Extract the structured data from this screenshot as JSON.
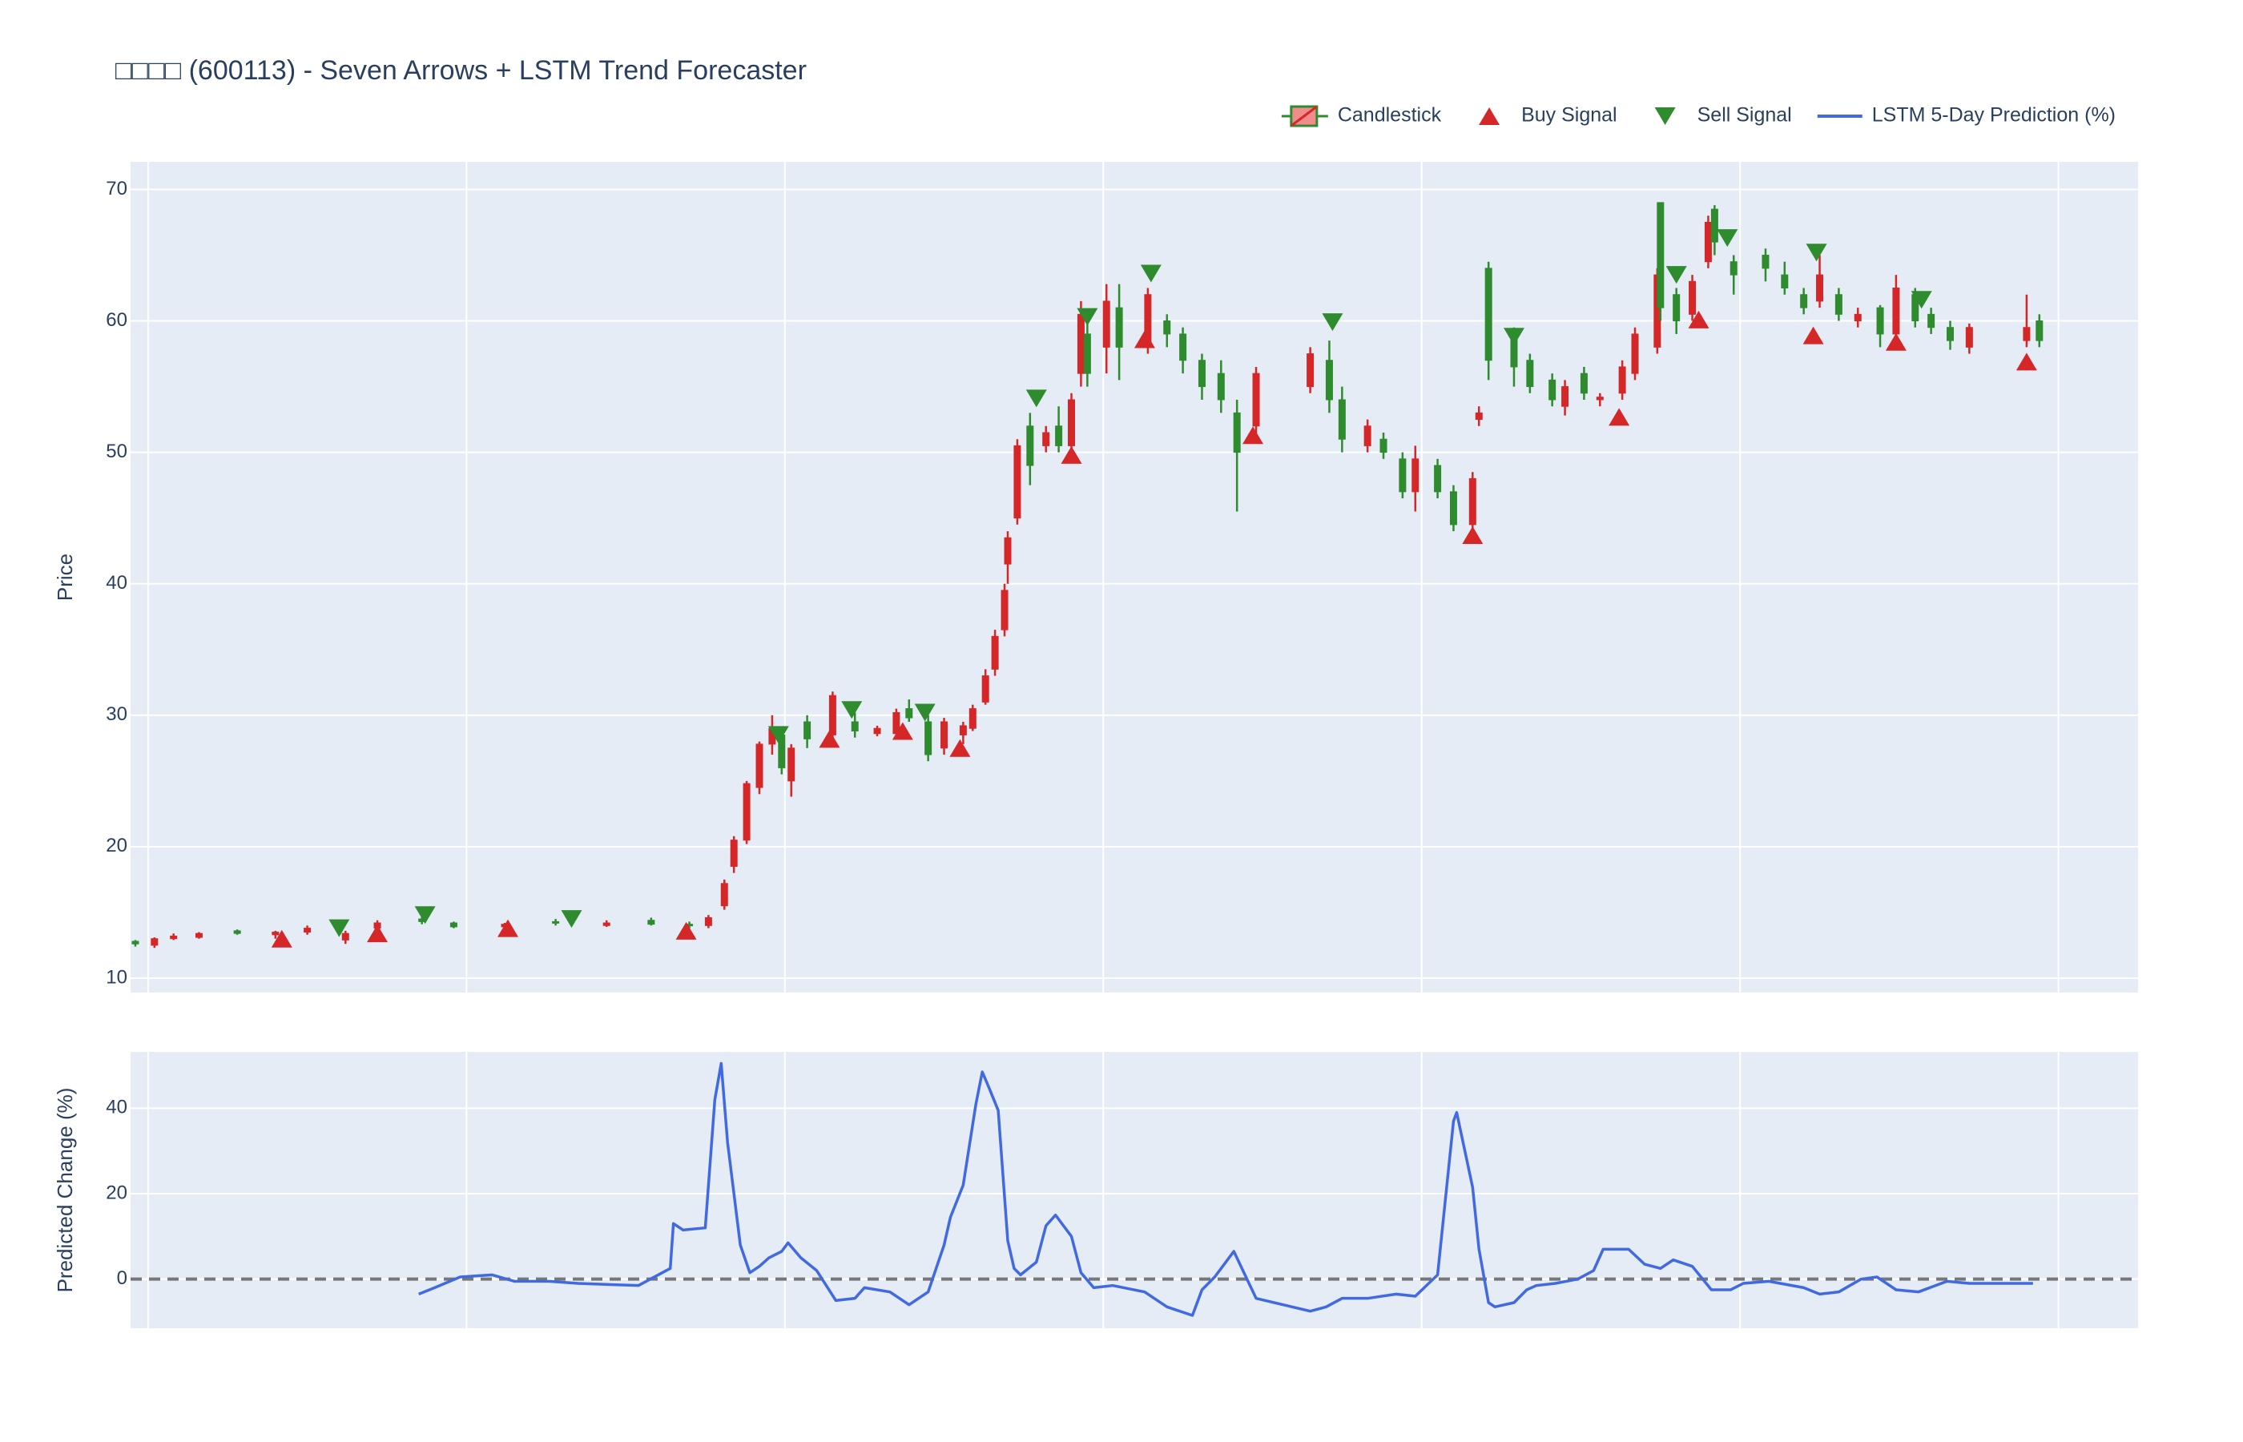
{
  "chart_data": [
    {
      "type": "candlestick",
      "title": "□□□□ (600113) - Seven Arrows + LSTM Trend Forecaster",
      "ylabel": "Price",
      "name": "Candlestick",
      "increasing_color": "#d62728",
      "decreasing_color": "#2e8b2e",
      "x": [
        -4,
        2,
        8,
        16,
        28,
        40,
        50,
        62,
        72,
        86,
        96,
        112,
        128,
        144,
        158,
        170,
        176,
        181,
        184,
        188,
        192,
        196,
        199,
        202,
        207,
        215,
        222,
        229,
        235,
        239,
        245,
        250,
        256,
        259,
        263,
        266,
        269,
        270,
        273,
        277,
        282,
        286,
        290,
        293,
        295,
        301,
        305,
        314,
        320,
        325,
        331,
        337,
        342,
        348,
        365,
        371,
        375,
        383,
        388,
        394,
        398,
        405,
        410,
        416,
        418,
        421,
        429,
        434,
        441,
        445,
        451,
        456,
        463,
        467,
        474,
        475,
        480,
        485,
        490,
        492,
        498,
        508,
        514,
        520,
        525,
        531,
        537,
        544,
        549,
        555,
        560,
        566,
        572,
        590,
        594
      ],
      "open": [
        12.8,
        12.5,
        13.0,
        13.1,
        13.6,
        13.3,
        13.5,
        12.9,
        13.8,
        14.5,
        14.2,
        13.9,
        14.3,
        14.0,
        14.4,
        14.1,
        14.0,
        15.5,
        18.5,
        20.5,
        24.5,
        27.8,
        28.5,
        25.0,
        29.5,
        28.5,
        29.5,
        28.6,
        28.6,
        30.5,
        29.5,
        27.5,
        28.5,
        29.0,
        31.0,
        33.5,
        36.5,
        41.5,
        45.0,
        52.0,
        50.5,
        52.0,
        50.5,
        56.0,
        59.0,
        58.0,
        61.0,
        58.0,
        60.0,
        59.0,
        57.0,
        56.0,
        53.0,
        52.0,
        55.0,
        57.0,
        54.0,
        50.5,
        51.0,
        49.5,
        47.0,
        49.0,
        47.0,
        44.5,
        52.5,
        64.0,
        59.0,
        57.0,
        55.5,
        53.5,
        56.0,
        54.0,
        54.5,
        56.0,
        58.0,
        69.0,
        62.0,
        60.5,
        64.5,
        68.5,
        64.5,
        65.0,
        63.5,
        62.0,
        61.5,
        62.0,
        60.0,
        61.0,
        59.0,
        62.0,
        60.5,
        59.5,
        58.0,
        58.5,
        60.0
      ],
      "high": [
        12.9,
        13.1,
        13.4,
        13.5,
        13.7,
        13.6,
        14.0,
        13.6,
        14.4,
        14.9,
        14.3,
        14.2,
        14.5,
        14.4,
        14.6,
        14.3,
        14.8,
        17.5,
        20.8,
        25.0,
        28.0,
        30.0,
        29.0,
        27.8,
        30.0,
        31.8,
        30.2,
        29.2,
        30.5,
        31.2,
        30.0,
        29.8,
        29.5,
        30.8,
        33.5,
        36.5,
        40.0,
        44.0,
        51.0,
        53.0,
        52.0,
        53.5,
        54.5,
        61.5,
        60.5,
        62.8,
        62.8,
        62.5,
        60.5,
        59.5,
        57.5,
        57.0,
        54.0,
        56.5,
        58.0,
        58.5,
        55.0,
        52.5,
        51.5,
        50.0,
        50.5,
        49.5,
        47.5,
        48.5,
        53.5,
        64.5,
        59.5,
        57.5,
        56.0,
        55.5,
        56.5,
        54.5,
        57.0,
        59.5,
        64.0,
        69.0,
        62.5,
        63.5,
        68.0,
        68.8,
        65.0,
        65.5,
        64.5,
        62.5,
        65.0,
        62.5,
        61.0,
        61.2,
        63.5,
        62.5,
        61.0,
        60.0,
        59.8,
        62.0,
        60.5
      ],
      "low": [
        12.4,
        12.3,
        12.9,
        13.0,
        13.3,
        13.0,
        13.3,
        12.6,
        13.6,
        14.1,
        13.8,
        13.7,
        14.0,
        13.9,
        14.0,
        13.8,
        13.8,
        15.2,
        18.0,
        20.2,
        24.0,
        27.0,
        25.5,
        23.8,
        27.5,
        28.0,
        28.3,
        28.4,
        28.3,
        29.5,
        26.5,
        27.0,
        27.8,
        28.8,
        30.8,
        33.0,
        36.0,
        40.0,
        44.5,
        47.5,
        50.0,
        50.0,
        50.0,
        55.0,
        55.0,
        56.0,
        55.5,
        57.5,
        58.0,
        56.0,
        54.0,
        53.0,
        45.5,
        51.0,
        54.5,
        53.0,
        50.0,
        50.0,
        49.5,
        46.5,
        45.5,
        46.5,
        44.0,
        44.0,
        52.0,
        55.5,
        55.0,
        54.5,
        53.5,
        52.8,
        54.0,
        53.5,
        54.0,
        55.5,
        57.5,
        60.0,
        59.0,
        60.0,
        64.0,
        65.0,
        62.0,
        63.0,
        62.0,
        60.5,
        61.0,
        60.0,
        59.5,
        58.0,
        58.5,
        59.5,
        59.0,
        57.8,
        57.5,
        58.0,
        58.0
      ],
      "close": [
        12.6,
        13.0,
        13.2,
        13.4,
        13.4,
        13.5,
        13.8,
        13.4,
        14.2,
        14.3,
        13.9,
        14.1,
        14.2,
        14.2,
        14.1,
        14.0,
        14.6,
        17.2,
        20.5,
        24.8,
        27.8,
        29.0,
        26.0,
        27.5,
        28.2,
        31.5,
        28.8,
        29.0,
        30.2,
        29.8,
        27.0,
        29.5,
        29.2,
        30.5,
        33.0,
        36.0,
        39.5,
        43.5,
        50.5,
        49.0,
        51.5,
        50.5,
        54.0,
        60.5,
        56.0,
        61.5,
        58.0,
        62.0,
        59.0,
        57.0,
        55.0,
        54.0,
        50.0,
        56.0,
        57.5,
        54.0,
        51.0,
        52.0,
        50.0,
        47.0,
        49.5,
        47.0,
        44.5,
        48.0,
        53.0,
        57.0,
        56.5,
        55.0,
        54.0,
        55.0,
        54.5,
        54.2,
        56.5,
        59.0,
        63.5,
        61.0,
        60.0,
        63.0,
        67.5,
        66.0,
        63.5,
        64.0,
        62.5,
        61.0,
        63.5,
        60.5,
        60.5,
        59.0,
        62.5,
        60.0,
        59.5,
        58.5,
        59.5,
        59.5,
        58.5
      ],
      "series": [
        {
          "name": "Buy Signal",
          "marker": "triangle-up",
          "color": "#d62728",
          "x": [
            42,
            72,
            113,
            169,
            214,
            237,
            255,
            290,
            313,
            347,
            416,
            462,
            487,
            523,
            549,
            590
          ],
          "values": [
            13.0,
            13.4,
            13.8,
            13.6,
            28.2,
            28.8,
            27.5,
            49.8,
            58.6,
            51.3,
            43.7,
            52.7,
            60.1,
            58.9,
            58.4,
            56.9
          ]
        },
        {
          "name": "Sell Signal",
          "marker": "triangle-down",
          "color": "#2e8b2e",
          "x": [
            60,
            87,
            133,
            198,
            221,
            244,
            279,
            295,
            315,
            372,
            429,
            480,
            496,
            524,
            557
          ],
          "values": [
            13.8,
            14.8,
            14.5,
            28.5,
            30.4,
            30.2,
            54.1,
            60.3,
            63.6,
            59.9,
            58.8,
            63.5,
            66.3,
            65.2,
            61.6
          ]
        }
      ],
      "xlim": [
        -5.5,
        625
      ],
      "xticks": [
        0,
        100,
        200,
        300,
        400,
        500,
        600
      ],
      "ylim": [
        8.9,
        72.1
      ],
      "yticks": [
        10,
        20,
        30,
        40,
        50,
        60,
        70
      ],
      "grid": true,
      "legend": "top-right"
    },
    {
      "type": "line",
      "ylabel": "Predicted Change (%)",
      "x": [
        85,
        90,
        98,
        108,
        115,
        126,
        135,
        154,
        164,
        165,
        168,
        175,
        178,
        180,
        182,
        186,
        189,
        192,
        195,
        199,
        201,
        205,
        210,
        216,
        222,
        225,
        233,
        239,
        245,
        250,
        252,
        256,
        260,
        262,
        264,
        267,
        270,
        272,
        274,
        279,
        282,
        285,
        290,
        293,
        297,
        303,
        313,
        320,
        328,
        331,
        335,
        341,
        348,
        365,
        370,
        375,
        383,
        392,
        398,
        405,
        410,
        411,
        416,
        418,
        421,
        423,
        429,
        433,
        436,
        442,
        449,
        454,
        457,
        465,
        470,
        475,
        479,
        485,
        491,
        497,
        501,
        509,
        520,
        525,
        531,
        538,
        543,
        549,
        556,
        565,
        572,
        592
      ],
      "series": [
        {
          "name": "LSTM 5-Day Prediction (%)",
          "color": "#4169e1",
          "values": [
            -3.5,
            -2,
            0.5,
            1,
            -0.5,
            -0.5,
            -1,
            -1.5,
            2.5,
            13,
            11.5,
            12,
            42,
            50.5,
            32,
            8,
            1.5,
            3,
            5,
            6.5,
            8.5,
            5,
            2,
            -5,
            -4.5,
            -2,
            -3,
            -6,
            -3,
            8,
            14.5,
            22,
            41,
            48.5,
            45,
            39.5,
            9,
            2.5,
            1,
            4,
            12.5,
            15,
            10,
            1.5,
            -2,
            -1.5,
            -3,
            -6.5,
            -8.5,
            -2.5,
            0.5,
            6.5,
            -4.5,
            -7.5,
            -6.5,
            -4.5,
            -4.5,
            -3.5,
            -4,
            1,
            37,
            39,
            21.5,
            7,
            -5.5,
            -6.5,
            -5.5,
            -2.5,
            -1.5,
            -1,
            0,
            2,
            7,
            7,
            3.5,
            2.5,
            4.5,
            3,
            -2.5,
            -2.5,
            -1,
            -0.5,
            -2,
            -3.5,
            -3,
            0,
            0.5,
            -2.5,
            -3,
            -0.5,
            -1,
            -1
          ]
        }
      ],
      "reference_line": {
        "value": 0,
        "color": "#777777"
      },
      "xlim": [
        -5.5,
        625
      ],
      "xticks": [
        0,
        100,
        200,
        300,
        400,
        500,
        600
      ],
      "ylim": [
        -11.5,
        53.2
      ],
      "yticks": [
        0,
        20,
        40
      ],
      "grid": true
    }
  ]
}
